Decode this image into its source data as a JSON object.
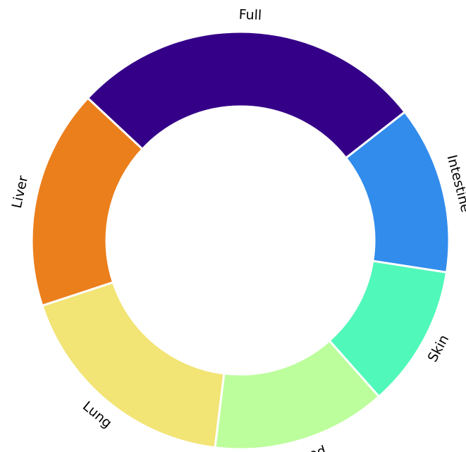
{
  "chart_data": {
    "type": "pie",
    "donut": true,
    "categories": [
      "Full",
      "Intestine",
      "Skin",
      "Blood",
      "Lung",
      "Liver"
    ],
    "values": [
      27.5,
      13.0,
      11.0,
      13.5,
      18.0,
      17.0
    ],
    "colors": [
      "#350088",
      "#318cec",
      "#50f8b9",
      "#bdfe9c",
      "#f2e475",
      "#eb7f1c"
    ],
    "start_angle_deg": -47,
    "direction": "clockwise",
    "legend": "none"
  }
}
